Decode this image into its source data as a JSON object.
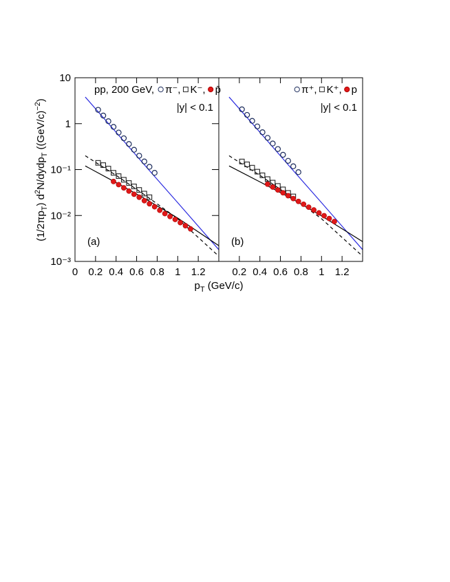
{
  "figure": {
    "xlabel": [
      "p",
      "T",
      " (GeV/c)"
    ],
    "ylabel": [
      "(1/2πp",
      "T",
      ") d",
      "2",
      "N/dydp",
      "T",
      " ((GeV/c)",
      "−2",
      ")"
    ]
  },
  "chart_data": [
    {
      "type": "scatter",
      "panel_label": "(a)",
      "legend_title": "pp, 200 GeV,",
      "legend": "upper left",
      "annotation": "|y| < 0.1",
      "xlim": [
        0,
        1.4
      ],
      "ylim": [
        0.001,
        10
      ],
      "log_y": true,
      "xticks": [
        0,
        0.2,
        0.4,
        0.6,
        0.8,
        1,
        1.2
      ],
      "yticks": [
        {
          "value": 0.001,
          "label": "10⁻³"
        },
        {
          "value": 0.01,
          "label": "10⁻²"
        },
        {
          "value": 0.1,
          "label": "10⁻¹"
        },
        1,
        10
      ],
      "series": [
        {
          "name": "π⁻,",
          "marker": "circle",
          "color": "#1a2a5a",
          "x": [
            0.225,
            0.275,
            0.325,
            0.375,
            0.425,
            0.475,
            0.525,
            0.575,
            0.625,
            0.675,
            0.725,
            0.775
          ],
          "values": [
            2.0,
            1.5,
            1.13,
            0.85,
            0.64,
            0.48,
            0.36,
            0.27,
            0.2,
            0.15,
            0.115,
            0.085
          ]
        },
        {
          "name": "K⁻,",
          "marker": "square",
          "color": "#222222",
          "x": [
            0.225,
            0.275,
            0.325,
            0.375,
            0.425,
            0.475,
            0.525,
            0.575,
            0.625,
            0.675,
            0.725
          ],
          "values": [
            0.14,
            0.125,
            0.105,
            0.085,
            0.072,
            0.06,
            0.051,
            0.043,
            0.036,
            0.03,
            0.025
          ]
        },
        {
          "name": "p̄",
          "marker": "filled-circle",
          "color": "#e01818",
          "x": [
            0.375,
            0.425,
            0.475,
            0.525,
            0.575,
            0.625,
            0.675,
            0.725,
            0.775,
            0.825,
            0.875,
            0.925,
            0.975,
            1.025,
            1.075,
            1.125
          ],
          "values": [
            0.055,
            0.047,
            0.04,
            0.034,
            0.029,
            0.025,
            0.021,
            0.018,
            0.0155,
            0.013,
            0.011,
            0.0095,
            0.0082,
            0.007,
            0.006,
            0.0051
          ]
        },
        {
          "marker": "line",
          "color": "#2a2ae0",
          "x": [
            0.1,
            0.4,
            0.7,
            1.0,
            1.4
          ],
          "values": [
            3.8,
            0.65,
            0.11,
            0.019,
            0.0018
          ]
        },
        {
          "marker": "line",
          "color": "#000000",
          "x": [
            0.1,
            0.4,
            0.7,
            1.0,
            1.4
          ],
          "values": [
            0.12,
            0.052,
            0.022,
            0.0088,
            0.0022
          ]
        },
        {
          "marker": "dashed-line",
          "color": "#000000",
          "x": [
            0.1,
            0.4,
            0.7,
            1.0,
            1.4
          ],
          "values": [
            0.2,
            0.075,
            0.026,
            0.0085,
            0.0013
          ]
        }
      ]
    },
    {
      "type": "scatter",
      "panel_label": "(b)",
      "legend": "upper right",
      "annotation": "|y| < 0.1",
      "xlim": [
        0,
        1.4
      ],
      "ylim": [
        0.001,
        10
      ],
      "log_y": true,
      "xticks": [
        0.2,
        0.4,
        0.6,
        0.8,
        1,
        1.2
      ],
      "series": [
        {
          "name": "π⁺,",
          "marker": "circle",
          "color": "#1a2a5a",
          "x": [
            0.225,
            0.275,
            0.325,
            0.375,
            0.425,
            0.475,
            0.525,
            0.575,
            0.625,
            0.675,
            0.725,
            0.775
          ],
          "values": [
            2.05,
            1.55,
            1.15,
            0.87,
            0.65,
            0.49,
            0.37,
            0.28,
            0.21,
            0.155,
            0.118,
            0.088
          ]
        },
        {
          "name": "K⁺,",
          "marker": "square",
          "color": "#222222",
          "x": [
            0.225,
            0.275,
            0.325,
            0.375,
            0.425,
            0.475,
            0.525,
            0.575,
            0.625,
            0.675,
            0.725
          ],
          "values": [
            0.15,
            0.13,
            0.11,
            0.09,
            0.075,
            0.062,
            0.052,
            0.044,
            0.037,
            0.031,
            0.026
          ]
        },
        {
          "name": "p",
          "marker": "filled-circle",
          "color": "#e01818",
          "x": [
            0.475,
            0.525,
            0.575,
            0.625,
            0.675,
            0.725,
            0.775,
            0.825,
            0.875,
            0.925,
            0.975,
            1.025,
            1.075,
            1.125
          ],
          "values": [
            0.048,
            0.0416,
            0.036,
            0.0312,
            0.027,
            0.0234,
            0.0203,
            0.0176,
            0.0152,
            0.0132,
            0.0114,
            0.0099,
            0.0086,
            0.0074
          ]
        },
        {
          "marker": "line",
          "color": "#2a2ae0",
          "x": [
            0.1,
            0.4,
            0.7,
            1.0,
            1.4
          ],
          "values": [
            3.8,
            0.65,
            0.11,
            0.019,
            0.0018
          ]
        },
        {
          "marker": "line",
          "color": "#000000",
          "x": [
            0.1,
            0.4,
            0.7,
            1.0,
            1.4
          ],
          "values": [
            0.12,
            0.054,
            0.024,
            0.0098,
            0.0027
          ]
        },
        {
          "marker": "dashed-line",
          "color": "#000000",
          "x": [
            0.1,
            0.4,
            0.7,
            1.0,
            1.4
          ],
          "values": [
            0.2,
            0.075,
            0.026,
            0.0085,
            0.0013
          ]
        }
      ]
    }
  ]
}
